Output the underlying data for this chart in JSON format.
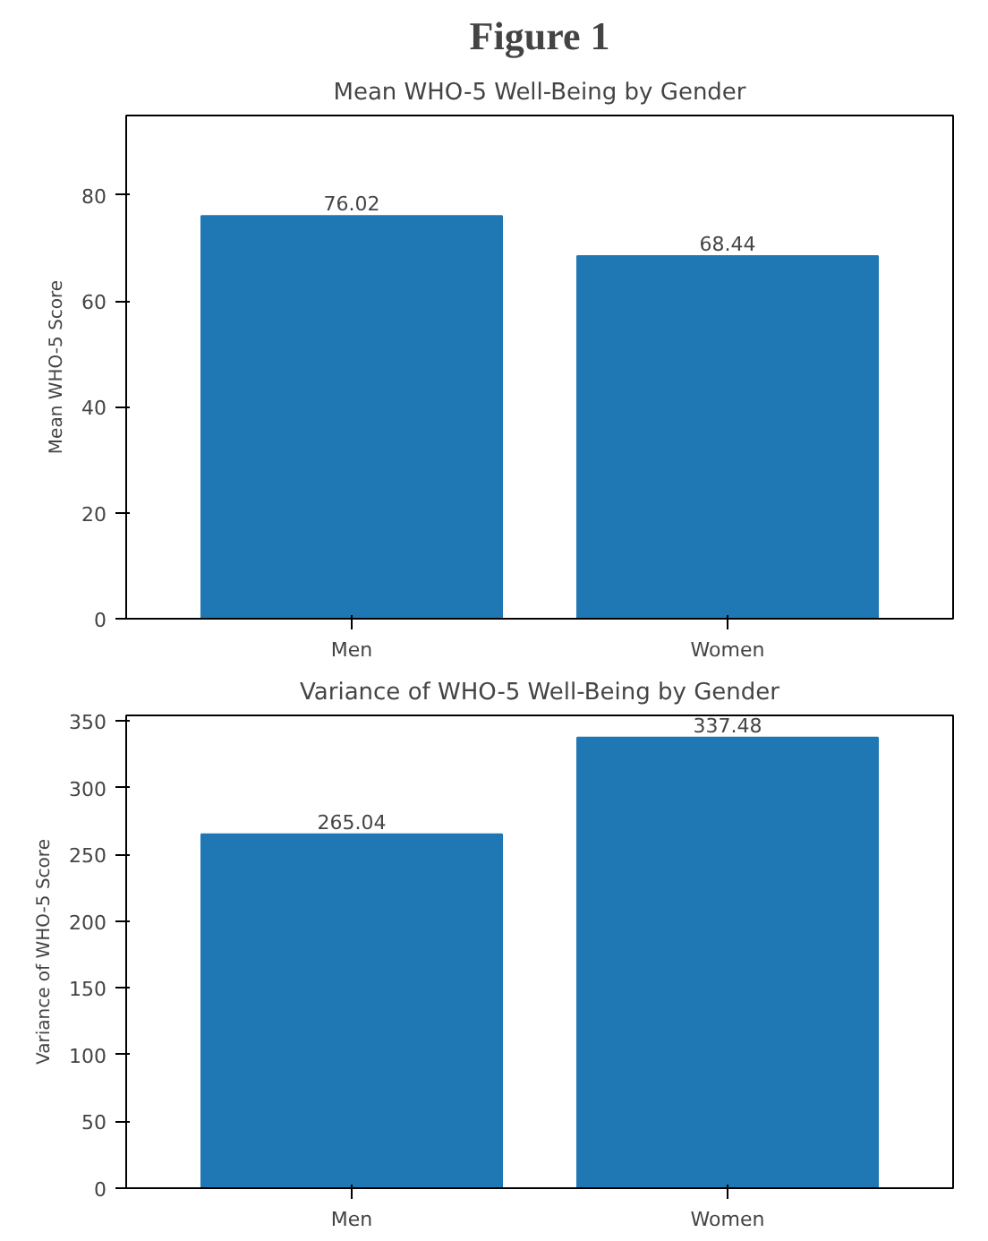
{
  "chart_data": [
    {
      "type": "bar",
      "title": "Figure 1",
      "subtitle": "Mean WHO-5 Well-Being by Gender",
      "ylabel": "Mean WHO-5 Score",
      "categories": [
        "Men",
        "Women"
      ],
      "values": [
        76.02,
        68.44
      ],
      "color": "#1f77b4",
      "ylim": [
        0,
        95
      ],
      "yticks": [
        0,
        20,
        40,
        60,
        80
      ],
      "data_labels": true,
      "grid": false
    },
    {
      "type": "bar",
      "title": "Variance of WHO-5 Well-Being by Gender",
      "ylabel": "Variance of WHO-5 Score",
      "categories": [
        "Men",
        "Women"
      ],
      "values": [
        265.04,
        337.48
      ],
      "color": "#1f77b4",
      "ylim": [
        0,
        354
      ],
      "yticks": [
        0,
        50,
        100,
        150,
        200,
        250,
        300,
        350
      ],
      "data_labels": true,
      "grid": false
    }
  ]
}
